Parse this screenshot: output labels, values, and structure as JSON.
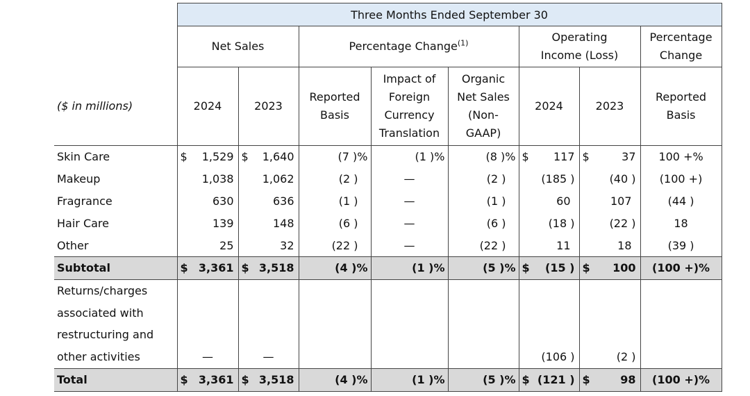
{
  "header": {
    "period": "Three Months Ended September 30",
    "net_sales": "Net Sales",
    "pct_change": "Percentage Change",
    "pct_change_note": "(1)",
    "op_income": [
      "Operating",
      "Income (Loss)"
    ],
    "pct_change_right": [
      "Percentage",
      "Change"
    ],
    "units": "($ in millions)",
    "y2024": "2024",
    "y2023": "2023",
    "reported_basis": [
      "Reported",
      "Basis"
    ],
    "impact_fx": [
      "Impact of",
      "Foreign",
      "Currency",
      "Translation"
    ],
    "organic": [
      "Organic",
      "Net Sales",
      "(Non-",
      "GAAP)"
    ],
    "oi_2024": "2024",
    "oi_2023": "2023",
    "reported_basis_right": [
      "Reported",
      "Basis"
    ]
  },
  "rows": [
    {
      "label": "Skin Care",
      "cur_ns24": "$",
      "ns24": "1,529",
      "cur_ns23": "$",
      "ns23": "1,640",
      "rep": "(7 )%",
      "fx": "(1 )%",
      "org": "(8 )%",
      "cur_oi24": "$",
      "oi24": "117",
      "cur_oi23": "$",
      "oi23": "37",
      "oi_chg": "100 +%"
    },
    {
      "label": "Makeup",
      "cur_ns24": "",
      "ns24": "1,038",
      "cur_ns23": "",
      "ns23": "1,062",
      "rep": "(2 )",
      "fx": "—",
      "org": "(2 )",
      "cur_oi24": "",
      "oi24": "(185 )",
      "cur_oi23": "",
      "oi23": "(40 )",
      "oi_chg": "(100 +)"
    },
    {
      "label": "Fragrance",
      "cur_ns24": "",
      "ns24": "630",
      "cur_ns23": "",
      "ns23": "636",
      "rep": "(1 )",
      "fx": "—",
      "org": "(1 )",
      "cur_oi24": "",
      "oi24": "60",
      "cur_oi23": "",
      "oi23": "107",
      "oi_chg": "(44 )"
    },
    {
      "label": "Hair Care",
      "cur_ns24": "",
      "ns24": "139",
      "cur_ns23": "",
      "ns23": "148",
      "rep": "(6 )",
      "fx": "—",
      "org": "(6 )",
      "cur_oi24": "",
      "oi24": "(18 )",
      "cur_oi23": "",
      "oi23": "(22 )",
      "oi_chg": "18"
    },
    {
      "label": "Other",
      "cur_ns24": "",
      "ns24": "25",
      "cur_ns23": "",
      "ns23": "32",
      "rep": "(22 )",
      "fx": "—",
      "org": "(22 )",
      "cur_oi24": "",
      "oi24": "11",
      "cur_oi23": "",
      "oi23": "18",
      "oi_chg": "(39 )"
    }
  ],
  "subtotal": {
    "label": "Subtotal",
    "cur_ns24": "$",
    "ns24": "3,361",
    "cur_ns23": "$",
    "ns23": "3,518",
    "rep": "(4 )%",
    "fx": "(1 )%",
    "org": "(5 )%",
    "cur_oi24": "$",
    "oi24": "(15 )",
    "cur_oi23": "$",
    "oi23": "100",
    "oi_chg": "(100 +)%"
  },
  "returns": {
    "label_lines": [
      "Returns/charges",
      "associated with",
      "restructuring and",
      "other activities"
    ],
    "ns24": "—",
    "ns23": "—",
    "oi24": "(106 )",
    "oi23": "(2 )"
  },
  "total": {
    "label": "Total",
    "cur_ns24": "$",
    "ns24": "3,361",
    "cur_ns23": "$",
    "ns23": "3,518",
    "rep": "(4 )%",
    "fx": "(1 )%",
    "org": "(5 )%",
    "cur_oi24": "$",
    "oi24": "(121 )",
    "cur_oi23": "$",
    "oi23": "98",
    "oi_chg": "(100 +)%"
  }
}
